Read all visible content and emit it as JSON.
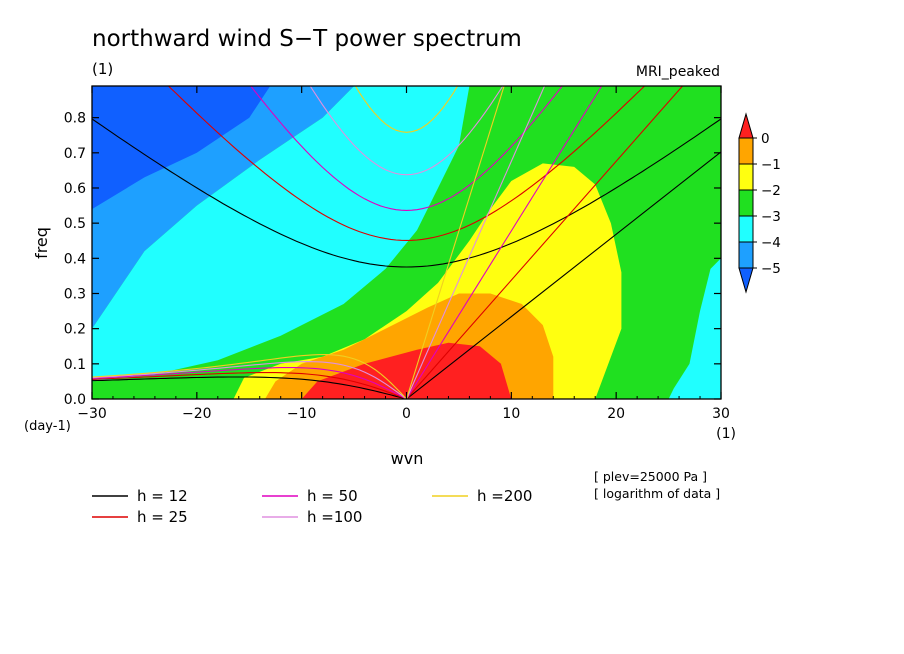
{
  "chart_data": {
    "type": "heatmap",
    "title": "northward wind S−T power spectrum",
    "title_unit": "(1)",
    "model_label": "MRI_peaked",
    "xlabel": "wvn",
    "xlabel_unit": "(1)",
    "ylabel": "freq",
    "ylabel_unit": "(day-1)",
    "xlim": [
      -30,
      30
    ],
    "ylim": [
      0,
      0.89
    ],
    "xticks": [
      -30,
      -20,
      -10,
      0,
      10,
      20,
      30
    ],
    "xtick_labels": [
      "−30",
      "−20",
      "−10",
      "0",
      "10",
      "20",
      "30"
    ],
    "yticks": [
      0.0,
      0.1,
      0.2,
      0.3,
      0.4,
      0.5,
      0.6,
      0.7,
      0.8
    ],
    "ytick_labels": [
      "0.0",
      "0.1",
      "0.2",
      "0.3",
      "0.4",
      "0.5",
      "0.6",
      "0.7",
      "0.8"
    ],
    "annotations": [
      "[ plev=25000 Pa ]",
      "[ logarithm of data ]"
    ],
    "colorbar": {
      "levels": [
        0,
        -1,
        -2,
        -3,
        -4,
        -5
      ],
      "labels": [
        "0",
        "−1",
        "−2",
        "−3",
        "−4",
        "−5"
      ],
      "colors": [
        "#ff2020",
        "#ffa500",
        "#ffff10",
        "#20e020",
        "#20ffff",
        "#1ea0ff",
        "#1060ff"
      ]
    },
    "background_color": "#20e020",
    "field_regions": [
      {
        "level": "<-4",
        "color": "#1ea0ff",
        "points": [
          [
            -30,
            0.89
          ],
          [
            -30,
            0.2
          ],
          [
            -25,
            0.42
          ],
          [
            -20,
            0.55
          ],
          [
            -14,
            0.68
          ],
          [
            -8,
            0.8
          ],
          [
            -5,
            0.89
          ]
        ]
      },
      {
        "level": "<-5",
        "color": "#1060ff",
        "points": [
          [
            -30,
            0.89
          ],
          [
            -30,
            0.54
          ],
          [
            -25,
            0.63
          ],
          [
            -20,
            0.7
          ],
          [
            -15,
            0.8
          ],
          [
            -13,
            0.89
          ]
        ]
      },
      {
        "level": "-4..-3",
        "color": "#20ffff",
        "points": [
          [
            -30,
            0.2
          ],
          [
            -30,
            0.05
          ],
          [
            -24,
            0.07
          ],
          [
            -18,
            0.11
          ],
          [
            -12,
            0.18
          ],
          [
            -6,
            0.27
          ],
          [
            -2,
            0.37
          ],
          [
            1,
            0.48
          ],
          [
            3,
            0.6
          ],
          [
            5,
            0.72
          ],
          [
            6,
            0.89
          ],
          [
            -5,
            0.89
          ],
          [
            -8,
            0.8
          ],
          [
            -14,
            0.68
          ],
          [
            -20,
            0.55
          ],
          [
            -25,
            0.42
          ]
        ]
      },
      {
        "level": "-4..-3 (east)",
        "color": "#20ffff",
        "points": [
          [
            30,
            0.4
          ],
          [
            29,
            0.37
          ],
          [
            28,
            0.25
          ],
          [
            27,
            0.1
          ],
          [
            25.5,
            0.03
          ],
          [
            25,
            0.0
          ],
          [
            30,
            0.0
          ]
        ]
      },
      {
        "level": "-2..-3",
        "color": "#ffff10",
        "points": [
          [
            -16.5,
            0
          ],
          [
            -15.5,
            0.06
          ],
          [
            -12,
            0.1
          ],
          [
            -8,
            0.12
          ],
          [
            -4,
            0.17
          ],
          [
            0,
            0.25
          ],
          [
            3,
            0.33
          ],
          [
            6,
            0.45
          ],
          [
            8,
            0.54
          ],
          [
            10,
            0.62
          ],
          [
            13,
            0.67
          ],
          [
            16,
            0.66
          ],
          [
            18,
            0.61
          ],
          [
            19.5,
            0.5
          ],
          [
            20.5,
            0.36
          ],
          [
            20.5,
            0.2
          ],
          [
            19,
            0.08
          ],
          [
            18,
            0.0
          ]
        ]
      },
      {
        "level": "-1..-2",
        "color": "#ffa500",
        "points": [
          [
            -13.5,
            0
          ],
          [
            -12.5,
            0.05
          ],
          [
            -10,
            0.1
          ],
          [
            -6,
            0.14
          ],
          [
            -2,
            0.2
          ],
          [
            2,
            0.26
          ],
          [
            5,
            0.3
          ],
          [
            8,
            0.3
          ],
          [
            11,
            0.27
          ],
          [
            13,
            0.21
          ],
          [
            14,
            0.12
          ],
          [
            14,
            0.0
          ]
        ]
      },
      {
        "level": ">-1",
        "color": "#ff2020",
        "points": [
          [
            -10,
            0
          ],
          [
            -8.5,
            0.05
          ],
          [
            -4,
            0.1
          ],
          [
            1,
            0.14
          ],
          [
            4,
            0.16
          ],
          [
            7,
            0.15
          ],
          [
            9,
            0.1
          ],
          [
            9.5,
            0.05
          ],
          [
            10,
            0.0
          ]
        ]
      }
    ],
    "series": [
      {
        "name": "h = 12",
        "color": "#000000",
        "h": 12
      },
      {
        "name": "h = 25",
        "color": "#dd0000",
        "h": 25
      },
      {
        "name": "h = 50",
        "color": "#e000c0",
        "h": 50
      },
      {
        "name": "h =100",
        "color": "#e090e0",
        "h": 100
      },
      {
        "name": "h =200",
        "color": "#f0d020",
        "h": 200
      }
    ],
    "grid": false,
    "legend_placement": "bottom"
  }
}
